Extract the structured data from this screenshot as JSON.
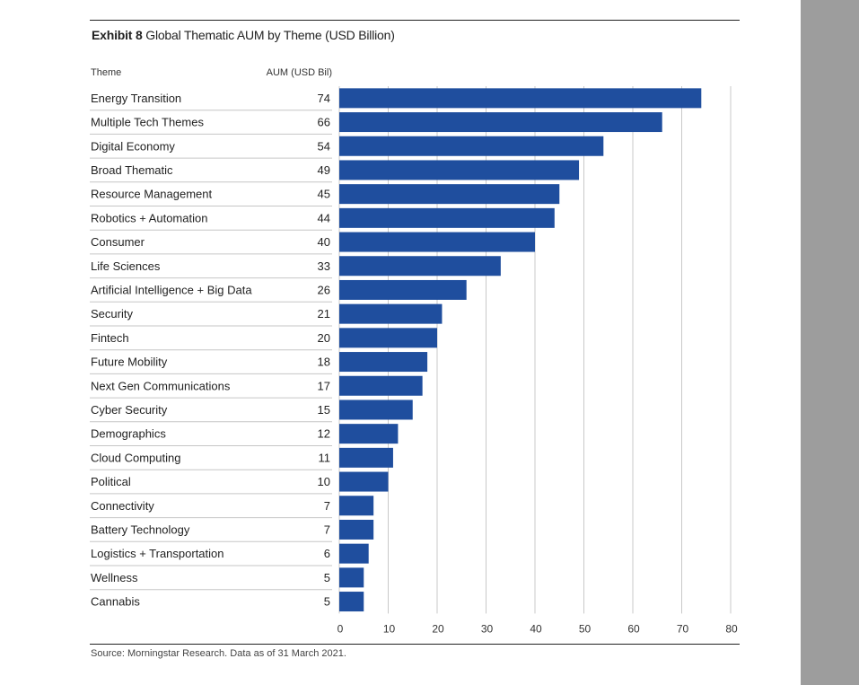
{
  "exhibit": {
    "number_label": "Exhibit 8",
    "title": "Global Thematic AUM by Theme (USD Billion)"
  },
  "columns": {
    "theme_header": "Theme",
    "aum_header": "AUM (USD Bil)"
  },
  "source": "Source: Morningstar Research. Data as of 31 March 2021.",
  "colors": {
    "bar": "#1f4e9e",
    "grid": "#c8c8c8",
    "separator": "#c6c6c6",
    "sidebar": "#9d9d9d"
  },
  "chart_data": {
    "type": "bar",
    "orientation": "horizontal",
    "categories": [
      "Energy Transition",
      "Multiple Tech Themes",
      "Digital Economy",
      "Broad Thematic",
      "Resource Management",
      "Robotics + Automation",
      "Consumer",
      "Life Sciences",
      "Artificial Intelligence + Big Data",
      "Security",
      "Fintech",
      "Future Mobility",
      "Next Gen Communications",
      "Cyber Security",
      "Demographics",
      "Cloud Computing",
      "Political",
      "Connectivity",
      "Battery Technology",
      "Logistics + Transportation",
      "Wellness",
      "Cannabis"
    ],
    "values": [
      74,
      66,
      54,
      49,
      45,
      44,
      40,
      33,
      26,
      21,
      20,
      18,
      17,
      15,
      12,
      11,
      10,
      7,
      7,
      6,
      5,
      5
    ],
    "xlim": [
      0,
      80
    ],
    "xticks": [
      0,
      10,
      20,
      30,
      40,
      50,
      60,
      70,
      80
    ],
    "grid": true
  }
}
